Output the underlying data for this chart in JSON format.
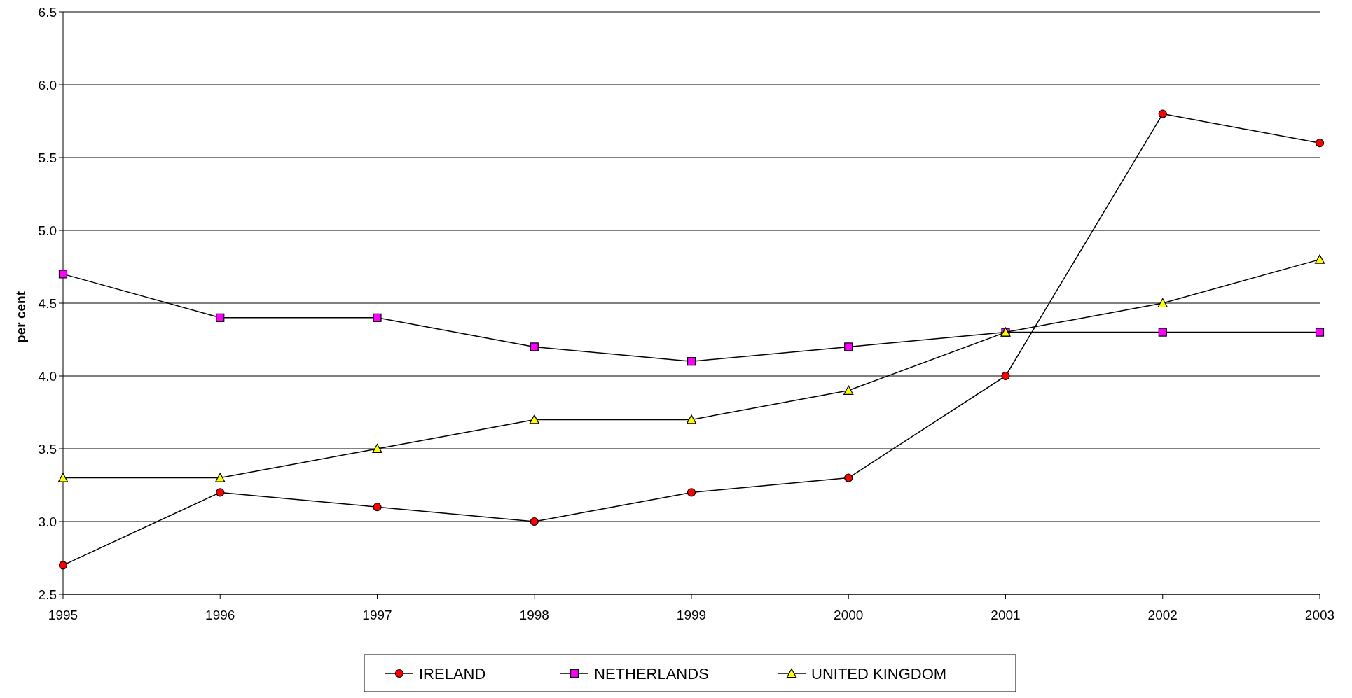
{
  "chart_data": {
    "type": "line",
    "ylabel": "per cent",
    "x": [
      1995,
      1996,
      1997,
      1998,
      1999,
      2000,
      2001,
      2002,
      2003
    ],
    "xlim": [
      1995,
      2003
    ],
    "xticks": [
      1995,
      1996,
      1997,
      1998,
      1999,
      2000,
      2001,
      2002,
      2003
    ],
    "ylim": [
      2.5,
      6.5
    ],
    "yticks": [
      {
        "value": 2.5,
        "label": "2.5"
      },
      {
        "value": 3,
        "label": "3.0"
      },
      {
        "value": 3.5,
        "label": "3.5"
      },
      {
        "value": 4,
        "label": "4.0"
      },
      {
        "value": 4.5,
        "label": "4.5"
      },
      {
        "value": 5,
        "label": "5.0"
      },
      {
        "value": 5.5,
        "label": "5.5"
      },
      {
        "value": 6,
        "label": "6.0"
      },
      {
        "value": 6.5,
        "label": "6.5"
      }
    ],
    "grid": "y",
    "legend": "bottom",
    "series": [
      {
        "name": "IRELAND",
        "color": "#ff0000",
        "marker": "circle",
        "values": [
          2.7,
          3.2,
          3.1,
          3.0,
          3.2,
          3.3,
          4.0,
          5.8,
          5.6
        ]
      },
      {
        "name": "NETHERLANDS",
        "color": "#ff00ff",
        "marker": "square",
        "values": [
          4.7,
          4.4,
          4.4,
          4.2,
          4.1,
          4.2,
          4.3,
          4.3,
          4.3
        ]
      },
      {
        "name": "UNITED KINGDOM",
        "color": "#ffff00",
        "marker": "triangle",
        "values": [
          3.3,
          3.3,
          3.5,
          3.7,
          3.7,
          3.9,
          4.3,
          4.5,
          4.8
        ]
      }
    ]
  }
}
